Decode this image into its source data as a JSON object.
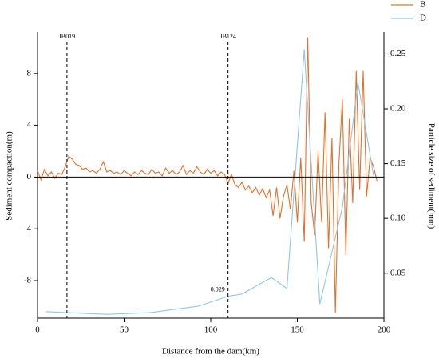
{
  "chart_data": {
    "type": "line",
    "xlabel": "Distance from the dam(km)",
    "ylabel": "Sediment compaction(m)",
    "y2label": "Particle size of sediment(mm)",
    "xlim": [
      0,
      200
    ],
    "xticks": [
      0,
      50,
      100,
      150,
      200
    ],
    "ylim": [
      -10.9,
      11.2
    ],
    "yticks": [
      -8,
      -4,
      0,
      4,
      8
    ],
    "y2lim": [
      0.009,
      0.27
    ],
    "y2ticks": [
      0.05,
      {
        "value": 0.1,
        "label": "0.10"
      },
      0.15,
      {
        "value": 0.2,
        "label": "0.20"
      },
      0.25
    ],
    "reference_line": 0,
    "legend": "top-right",
    "annotations": [
      {
        "text": "JB019",
        "x": 17
      },
      {
        "text": "JB124",
        "x": 110
      },
      {
        "text": "0.029",
        "x": 110,
        "y": 0.029
      }
    ],
    "series": [
      {
        "name": "B",
        "color": "#e8702a",
        "axis": "y",
        "x": [
          0,
          2,
          4,
          6,
          8,
          10,
          12,
          14,
          16,
          18,
          20,
          22,
          24,
          26,
          28,
          30,
          32,
          34,
          36,
          38,
          40,
          42,
          44,
          46,
          48,
          50,
          52,
          54,
          56,
          58,
          60,
          62,
          64,
          66,
          68,
          70,
          72,
          74,
          76,
          78,
          80,
          82,
          84,
          86,
          88,
          90,
          92,
          94,
          96,
          98,
          100,
          102,
          104,
          106,
          108,
          110,
          112,
          114,
          116,
          118,
          120,
          122,
          124,
          126,
          128,
          130,
          132,
          134,
          136,
          138,
          140,
          142,
          144,
          146,
          148,
          150,
          152,
          154,
          156,
          158,
          160,
          162,
          164,
          166,
          168,
          170,
          172,
          174,
          176,
          178,
          180,
          182,
          184,
          186,
          188,
          190,
          192,
          194,
          196
        ],
        "values": [
          0.5,
          -0.2,
          0.6,
          0.1,
          0.4,
          -0.1,
          0.3,
          0.2,
          0.8,
          1.6,
          1.4,
          1.0,
          0.9,
          0.6,
          0.7,
          0.4,
          0.5,
          0.3,
          0.6,
          1.2,
          0.4,
          0.5,
          0.3,
          0.4,
          0.2,
          0.5,
          0.3,
          0.1,
          0.4,
          0.2,
          0.5,
          0.3,
          0.2,
          0.6,
          0.3,
          0.4,
          0.1,
          0.7,
          0.3,
          0.5,
          0.2,
          0.4,
          0.9,
          0.2,
          0.5,
          0.3,
          0.8,
          0.4,
          0.2,
          0.6,
          0.3,
          0.5,
          0.1,
          0.4,
          0.2,
          -0.5,
          0.2,
          -0.6,
          -0.8,
          -0.4,
          -1.0,
          -0.7,
          -1.2,
          -0.8,
          -1.4,
          -0.9,
          -1.6,
          -1.0,
          -3.0,
          -0.8,
          -3.2,
          -1.5,
          -0.6,
          -2.5,
          0.5,
          -3.5,
          1.5,
          -5.0,
          10.8,
          -2.0,
          -4.5,
          2.0,
          -3.5,
          5.0,
          -5.5,
          3.0,
          -10.5,
          1.0,
          6.0,
          -6.0,
          4.5,
          -2.0,
          8.2,
          -1.0,
          8.2,
          -1.5,
          1.5,
          0.8,
          -0.3
        ]
      },
      {
        "name": "D",
        "color": "#8cc8e8",
        "axis": "y2",
        "x": [
          5,
          17,
          40,
          65,
          93,
          110,
          118,
          135,
          144,
          154,
          163,
          176,
          185,
          194
        ],
        "values": [
          0.015,
          0.014,
          0.0125,
          0.014,
          0.02,
          0.029,
          0.031,
          0.046,
          0.036,
          0.254,
          0.022,
          0.11,
          0.224,
          0.139
        ]
      }
    ]
  }
}
